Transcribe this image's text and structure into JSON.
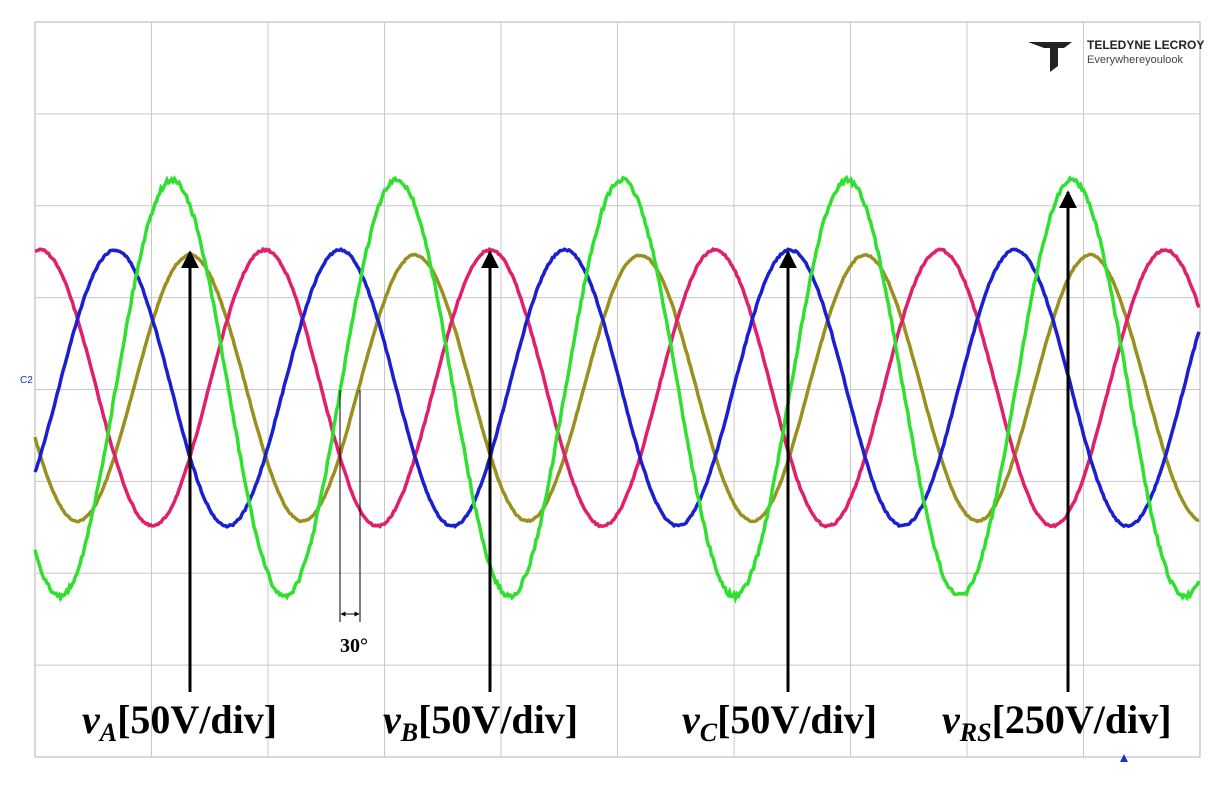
{
  "logo": {
    "brand": "TELEDYNE LECROY",
    "tagline": "Everywhereyoulook"
  },
  "channel_marker": "C2",
  "phase_annotation": "30°",
  "labels": [
    {
      "symbol": "v",
      "subscript": "A",
      "scale": "[50V/div]"
    },
    {
      "symbol": "v",
      "subscript": "B",
      "scale": "[50V/div]"
    },
    {
      "symbol": "v",
      "subscript": "C",
      "scale": "[50V/div]"
    },
    {
      "symbol": "v",
      "subscript": "RS",
      "scale": "[250V/div]"
    }
  ]
}
